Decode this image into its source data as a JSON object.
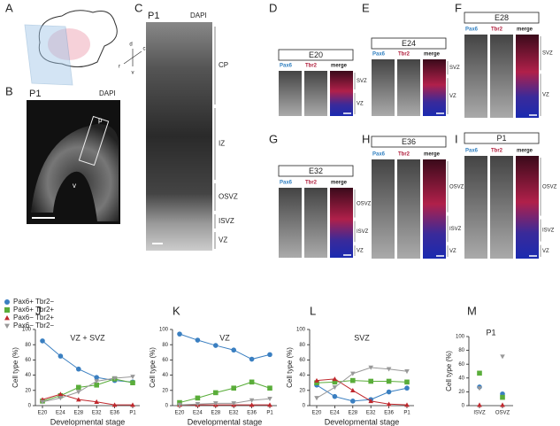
{
  "figure": {
    "panel_A": {
      "letter": "A",
      "axes": [
        "d",
        "c",
        "r",
        "v"
      ]
    },
    "panel_B": {
      "letter": "B",
      "stage": "P1",
      "stain": "DAPI",
      "marks": [
        "p",
        "v"
      ]
    },
    "panel_C": {
      "letter": "C",
      "stage": "P1",
      "stain": "DAPI",
      "zones": [
        "CP",
        "IZ",
        "OSVZ",
        "ISVZ",
        "VZ"
      ]
    },
    "channels": [
      "Pax6",
      "Tbr2",
      "merge"
    ],
    "stage_panels": [
      {
        "letter": "D",
        "stage": "E20",
        "zones": [
          "SVZ",
          "VZ"
        ]
      },
      {
        "letter": "E",
        "stage": "E24",
        "zones": [
          "SVZ",
          "VZ"
        ]
      },
      {
        "letter": "F",
        "stage": "E28",
        "zones": [
          "SVZ",
          "VZ"
        ]
      },
      {
        "letter": "G",
        "stage": "E32",
        "zones": [
          "OSVZ",
          "ISVZ",
          "VZ"
        ]
      },
      {
        "letter": "H",
        "stage": "E36",
        "zones": [
          "OSVZ",
          "ISVZ",
          "VZ"
        ]
      },
      {
        "letter": "I",
        "stage": "P1",
        "zones": [
          "OSVZ",
          "ISVZ",
          "VZ"
        ]
      }
    ]
  },
  "chart_data": [
    {
      "type": "line",
      "label": "J",
      "title": "VZ + SVZ",
      "xlabel": "Developmental stage",
      "ylabel": "Cell type (%)",
      "categories": [
        "E20",
        "E24",
        "E28",
        "E32",
        "E36",
        "P1"
      ],
      "ylim": [
        0,
        100
      ],
      "yticks": [
        0,
        20,
        40,
        60,
        80,
        100
      ],
      "series": [
        {
          "name": "Pax6+ Tbr2−",
          "color": "#3a7fc1",
          "marker": "circle",
          "values": [
            85,
            65,
            48,
            37,
            33,
            31
          ]
        },
        {
          "name": "Pax6+ Tbr2+",
          "color": "#5aad3a",
          "marker": "square",
          "values": [
            6,
            13,
            24,
            27,
            35,
            30
          ]
        },
        {
          "name": "Pax6− Tbr2+",
          "color": "#c0282d",
          "marker": "triangle-up",
          "values": [
            8,
            15,
            8,
            5,
            1,
            1
          ]
        },
        {
          "name": "Pax6− Tbr2−",
          "color": "#999999",
          "marker": "triangle-down",
          "values": [
            5,
            10,
            18,
            32,
            36,
            38
          ]
        }
      ]
    },
    {
      "type": "line",
      "label": "K",
      "title": "VZ",
      "xlabel": "Developmental stage",
      "ylabel": "Cell type (%)",
      "categories": [
        "E20",
        "E24",
        "E28",
        "E32",
        "E36",
        "P1"
      ],
      "ylim": [
        0,
        100
      ],
      "yticks": [
        0,
        20,
        40,
        60,
        80,
        100
      ],
      "series": [
        {
          "color": "#3a7fc1",
          "marker": "circle",
          "values": [
            94,
            86,
            79,
            73,
            61,
            67
          ]
        },
        {
          "color": "#5aad3a",
          "marker": "square",
          "values": [
            4,
            10,
            17,
            23,
            31,
            23
          ]
        },
        {
          "color": "#c0282d",
          "marker": "triangle-up",
          "values": [
            1,
            1,
            1,
            1,
            1,
            1
          ]
        },
        {
          "color": "#999999",
          "marker": "triangle-down",
          "values": [
            1,
            2,
            3,
            3,
            7,
            9
          ]
        }
      ]
    },
    {
      "type": "line",
      "label": "L",
      "title": "SVZ",
      "xlabel": "Developmental stage",
      "ylabel": "Cell type (%)",
      "categories": [
        "E20",
        "E24",
        "E28",
        "E32",
        "E36",
        "P1"
      ],
      "ylim": [
        0,
        100
      ],
      "yticks": [
        0,
        20,
        40,
        60,
        80,
        100
      ],
      "series": [
        {
          "color": "#3a7fc1",
          "marker": "circle",
          "values": [
            27,
            12,
            6,
            8,
            18,
            23
          ]
        },
        {
          "color": "#5aad3a",
          "marker": "square",
          "values": [
            30,
            31,
            33,
            32,
            32,
            31
          ]
        },
        {
          "color": "#c0282d",
          "marker": "triangle-up",
          "values": [
            33,
            35,
            20,
            6,
            2,
            1
          ]
        },
        {
          "color": "#999999",
          "marker": "triangle-down",
          "values": [
            10,
            24,
            42,
            50,
            48,
            45
          ]
        }
      ]
    },
    {
      "type": "dot",
      "label": "M",
      "title": "P1",
      "ylabel": "Cell type (%)",
      "categories": [
        "ISVZ",
        "OSVZ"
      ],
      "ylim": [
        0,
        100
      ],
      "yticks": [
        0,
        20,
        40,
        60,
        80,
        100
      ],
      "series": [
        {
          "color": "#3a7fc1",
          "marker": "circle",
          "values": [
            27,
            17
          ]
        },
        {
          "color": "#5aad3a",
          "marker": "square",
          "values": [
            47,
            12
          ]
        },
        {
          "color": "#c0282d",
          "marker": "triangle-up",
          "values": [
            1,
            1
          ]
        },
        {
          "color": "#999999",
          "marker": "triangle-down",
          "values": [
            25,
            71
          ]
        }
      ]
    }
  ]
}
